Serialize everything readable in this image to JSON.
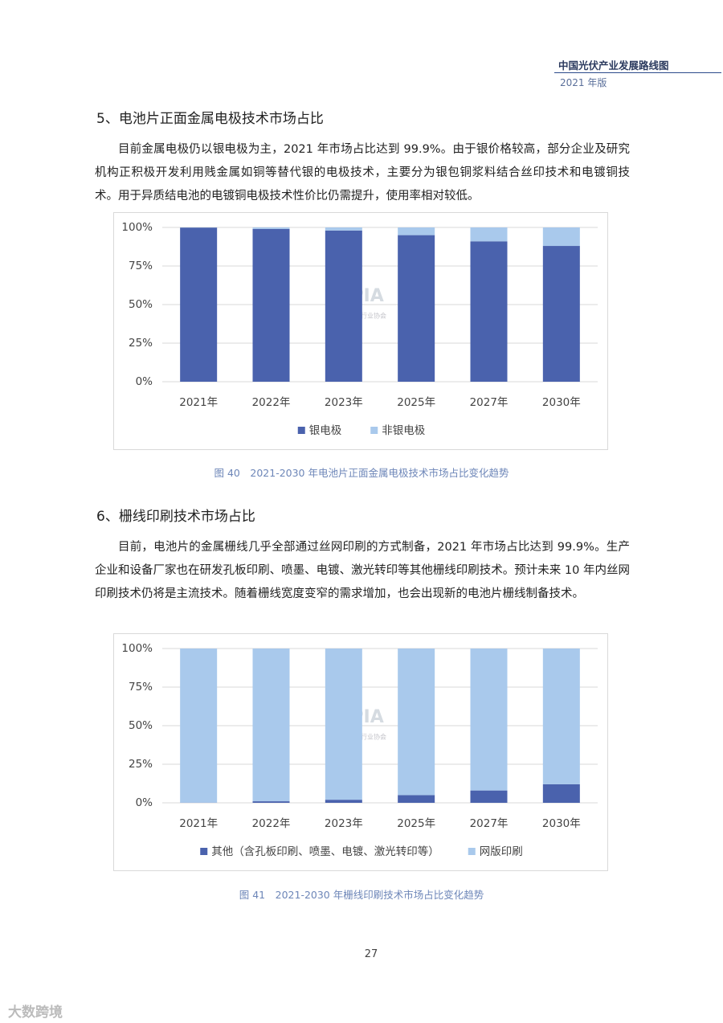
{
  "header": {
    "title": "中国光伏产业发展路线图",
    "edition": "2021 年版"
  },
  "sections": [
    {
      "heading": "5、电池片正面金属电极技术市场占比",
      "paragraph": "目前金属电极仍以银电极为主，2021 年市场占比达到 99.9%。由于银价格较高，部分企业及研究机构正积极开发利用贱金属如铜等替代银的电极技术，主要分为银包铜浆料结合丝印技术和电镀铜技术。用于异质结电池的电镀铜电极技术性价比仍需提升，使用率相对较低。",
      "caption": "图 40　2021-2030 年电池片正面金属电极技术市场占比变化趋势"
    },
    {
      "heading": "6、栅线印刷技术市场占比",
      "paragraph": "目前，电池片的金属栅线几乎全部通过丝网印刷的方式制备，2021 年市场占比达到 99.9%。生产企业和设备厂家也在研发孔板印刷、喷墨、电镀、激光转印等其他栅线印刷技术。预计未来 10 年内丝网印刷技术仍将是主流技术。随着栅线宽度变窄的需求增加，也会出现新的电池片栅线制备技术。",
      "caption": "图 41　2021-2030 年栅线印刷技术市场占比变化趋势"
    }
  ],
  "watermark": {
    "logo": "CPIA",
    "org": "中国光伏行业协会",
    "corner": "大数跨境"
  },
  "page_number": "27",
  "chart_data": [
    {
      "type": "bar",
      "stacked": true,
      "categories": [
        "2021年",
        "2022年",
        "2023年",
        "2025年",
        "2027年",
        "2030年"
      ],
      "series": [
        {
          "name": "银电极",
          "color": "#4a62ad",
          "values": [
            99.9,
            99,
            98,
            95,
            91,
            88
          ]
        },
        {
          "name": "非银电极",
          "color": "#a9c9ec",
          "values": [
            0.1,
            1,
            2,
            5,
            9,
            12
          ]
        }
      ],
      "ylim": [
        0,
        100
      ],
      "yticks": [
        {
          "value": 0,
          "label": "0%"
        },
        {
          "value": 25,
          "label": "25%"
        },
        {
          "value": 50,
          "label": "50%"
        },
        {
          "value": 75,
          "label": "75%"
        },
        {
          "value": 100,
          "label": "100%"
        }
      ],
      "grid": true,
      "legend": "bottom"
    },
    {
      "type": "bar",
      "stacked": true,
      "categories": [
        "2021年",
        "2022年",
        "2023年",
        "2025年",
        "2027年",
        "2030年"
      ],
      "series": [
        {
          "name": "其他（含孔板印刷、喷墨、电镀、激光转印等）",
          "color": "#4a62ad",
          "values": [
            0.1,
            1,
            2,
            5,
            8,
            12
          ]
        },
        {
          "name": "网版印刷",
          "color": "#a9c9ec",
          "values": [
            99.9,
            99,
            98,
            95,
            92,
            88
          ]
        }
      ],
      "ylim": [
        0,
        100
      ],
      "yticks": [
        {
          "value": 0,
          "label": "0%"
        },
        {
          "value": 25,
          "label": "25%"
        },
        {
          "value": 50,
          "label": "50%"
        },
        {
          "value": 75,
          "label": "75%"
        },
        {
          "value": 100,
          "label": "100%"
        }
      ],
      "grid": true,
      "legend": "bottom"
    }
  ]
}
